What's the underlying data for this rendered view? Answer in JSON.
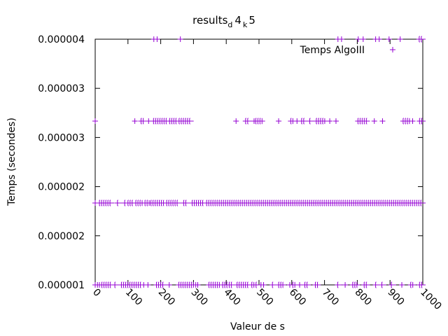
{
  "chart_data": {
    "type": "scatter",
    "title": {
      "main": "results",
      "sub1": "d",
      "mid": "4",
      "sub2": "k",
      "end": "5"
    },
    "xlabel": "Valeur de s",
    "ylabel": "Temps (secondes)",
    "xlim": [
      0,
      1000
    ],
    "ylim": [
      1e-06,
      4e-06
    ],
    "x_ticks": [
      "0",
      "100",
      "200",
      "300",
      "400",
      "500",
      "600",
      "700",
      "800",
      "900",
      "1000"
    ],
    "y_ticks": [
      "0.000001",
      "0.000002",
      "0.000002",
      "0.000003",
      "0.000003",
      "0.000004"
    ],
    "grid": false,
    "legend_position": "top-right",
    "color": "#9400d3",
    "series": [
      {
        "name": "Temps AlgoIII",
        "bands": [
          {
            "y": 4e-06,
            "segments": [
              [
                179,
                179
              ],
              [
                189,
                189
              ],
              [
                260,
                261
              ],
              [
                741,
                741
              ],
              [
                752,
                752
              ],
              [
                803,
                803
              ],
              [
                818,
                818
              ],
              [
                856,
                856
              ],
              [
                867,
                871
              ],
              [
                897,
                897
              ],
              [
                931,
                931
              ],
              [
                989,
                1000
              ]
            ]
          },
          {
            "y": 3e-06,
            "segments": [
              [
                0,
                0
              ],
              [
                121,
                121
              ],
              [
                140,
                148
              ],
              [
                163,
                166
              ],
              [
                178,
                219
              ],
              [
                227,
                249
              ],
              [
                256,
                292
              ],
              [
                430,
                430
              ],
              [
                459,
                470
              ],
              [
                485,
                485
              ],
              [
                490,
                510
              ],
              [
                560,
                560
              ],
              [
                597,
                604
              ],
              [
                616,
                620
              ],
              [
                630,
                640
              ],
              [
                655,
                661
              ],
              [
                675,
                701
              ],
              [
                716,
                716
              ],
              [
                735,
                735
              ],
              [
                802,
                830
              ],
              [
                852,
                852
              ],
              [
                877,
                877
              ],
              [
                940,
                960
              ],
              [
                969,
                972
              ],
              [
                990,
                1000
              ]
            ]
          },
          {
            "y": 2e-06,
            "segments": [
              [
                0,
                0
              ],
              [
                13,
                50
              ],
              [
                68,
                74
              ],
              [
                90,
                95
              ],
              [
                100,
                115
              ],
              [
                124,
                144
              ],
              [
                152,
                165
              ],
              [
                170,
                210
              ],
              [
                218,
                255
              ],
              [
                270,
                280
              ],
              [
                296,
                330
              ],
              [
                340,
                1000
              ]
            ]
          },
          {
            "y": 1e-06,
            "segments": [
              [
                0,
                0
              ],
              [
                7,
                7
              ],
              [
                13,
                13
              ],
              [
                20,
                50
              ],
              [
                60,
                65
              ],
              [
                80,
                140
              ],
              [
                148,
                152
              ],
              [
                161,
                165
              ],
              [
                187,
                210
              ],
              [
                226,
                230
              ],
              [
                255,
                300
              ],
              [
                307,
                311
              ],
              [
                313,
                313
              ],
              [
                347,
                380
              ],
              [
                389,
                405
              ],
              [
                409,
                420
              ],
              [
                433,
                470
              ],
              [
                478,
                485
              ],
              [
                491,
                497
              ],
              [
                506,
                510
              ],
              [
                514,
                518
              ],
              [
                541,
                546
              ],
              [
                560,
                574
              ],
              [
                594,
                596
              ],
              [
                603,
                610
              ],
              [
                624,
                627
              ],
              [
                640,
                650
              ],
              [
                672,
                680
              ],
              [
                740,
                745
              ],
              [
                763,
                767
              ],
              [
                786,
                800
              ],
              [
                821,
                830
              ],
              [
                856,
                862
              ],
              [
                875,
                880
              ],
              [
                904,
                910
              ],
              [
                936,
                940
              ],
              [
                963,
                970
              ],
              [
                990,
                1000
              ]
            ]
          }
        ]
      }
    ]
  }
}
